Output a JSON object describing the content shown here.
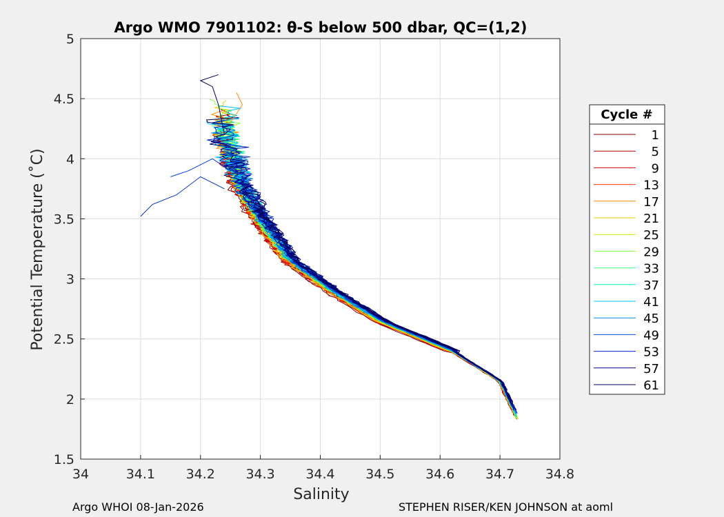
{
  "chart_data": {
    "type": "line",
    "title": "Argo WMO 7901102: θ-S below 500 dbar,  QC=(1,2)",
    "xlabel": "Salinity",
    "ylabel": "Potential Temperature (˚C)",
    "xlim": [
      34,
      34.8
    ],
    "ylim": [
      1.5,
      5
    ],
    "xticks": [
      "34",
      "34.1",
      "34.2",
      "34.3",
      "34.4",
      "34.5",
      "34.6",
      "34.7",
      "34.8"
    ],
    "yticks": [
      "1.5",
      "2",
      "2.5",
      "3",
      "3.5",
      "4",
      "4.5",
      "5"
    ],
    "grid": true,
    "legend": {
      "title": "Cycle #",
      "position": "outside-right",
      "entries": [
        {
          "label": "1",
          "color": "#800000"
        },
        {
          "label": "5",
          "color": "#b00000"
        },
        {
          "label": "9",
          "color": "#d80000"
        },
        {
          "label": "13",
          "color": "#ff3000"
        },
        {
          "label": "17",
          "color": "#ff8c00"
        },
        {
          "label": "21",
          "color": "#e8d000"
        },
        {
          "label": "25",
          "color": "#c0f000"
        },
        {
          "label": "29",
          "color": "#80ff40"
        },
        {
          "label": "33",
          "color": "#40ff80"
        },
        {
          "label": "37",
          "color": "#00f0c0"
        },
        {
          "label": "41",
          "color": "#00c0ff"
        },
        {
          "label": "45",
          "color": "#0090f0"
        },
        {
          "label": "49",
          "color": "#0050e0"
        },
        {
          "label": "53",
          "color": "#0020c0"
        },
        {
          "label": "57",
          "color": "#000080"
        },
        {
          "label": "61",
          "color": "#000060"
        }
      ]
    },
    "series_envelope": [
      {
        "salinity": 34.73,
        "theta": 1.83
      },
      {
        "salinity": 34.7,
        "theta": 2.15
      },
      {
        "salinity": 34.62,
        "theta": 2.4
      },
      {
        "salinity": 34.5,
        "theta": 2.65
      },
      {
        "salinity": 34.42,
        "theta": 2.9
      },
      {
        "salinity": 34.35,
        "theta": 3.15
      },
      {
        "salinity": 34.3,
        "theta": 3.5
      },
      {
        "salinity": 34.27,
        "theta": 3.8
      },
      {
        "salinity": 34.25,
        "theta": 4.2
      }
    ],
    "footer_left": "Argo WHOI 08-Jan-2026",
    "footer_right": "STEPHEN RISER/KEN JOHNSON at aoml"
  }
}
